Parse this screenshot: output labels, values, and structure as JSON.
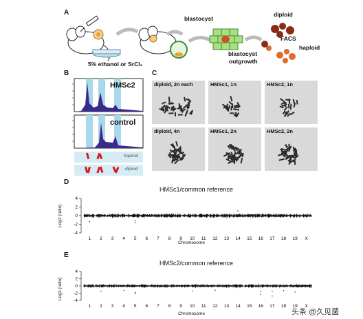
{
  "panels": {
    "a": {
      "label": "A",
      "treatment": "5% ethanol or SrCl₂",
      "blastocyst": "blastocyst",
      "outgrowth_line1": "blastocyst",
      "outgrowth_line2": "outgrowth",
      "diploid": "diploid",
      "facs": "FACS",
      "haploid": "haploid"
    },
    "b": {
      "label": "B",
      "hmsc2": "HMSc2",
      "control": "control",
      "haploid": "haploid",
      "diploid": "diploid"
    },
    "c": {
      "label": "C",
      "cells": [
        "diploid, 2n each",
        "HMSc1, 1n",
        "HMSc2, 1n",
        "diploid, 4n",
        "HMSc1, 2n",
        "HMSc2, 2n"
      ]
    },
    "d": {
      "label": "D",
      "title": "HMSc1/common reference",
      "ylabel": "Log2 (ratio)",
      "xlabel": "Chromosome",
      "yticks": [
        "4",
        "2",
        "0",
        "-2",
        "-4"
      ],
      "chromosomes": [
        "1",
        "2",
        "3",
        "4",
        "5",
        "6",
        "7",
        "8",
        "9",
        "10",
        "11",
        "12",
        "13",
        "14",
        "15",
        "16",
        "17",
        "18",
        "19",
        "X"
      ]
    },
    "e": {
      "label": "E",
      "title": "HMSc2/common reference",
      "ylabel": "Log2 (ratio)",
      "xlabel": "Chromosome",
      "yticks": [
        "4",
        "2",
        "0",
        "-2",
        "-4"
      ],
      "chromosomes": [
        "1",
        "2",
        "3",
        "4",
        "5",
        "6",
        "7",
        "8",
        "9",
        "10",
        "11",
        "12",
        "13",
        "14",
        "15",
        "16",
        "17",
        "18",
        "19",
        "X"
      ]
    }
  },
  "watermark": "头条 @久见菌"
}
